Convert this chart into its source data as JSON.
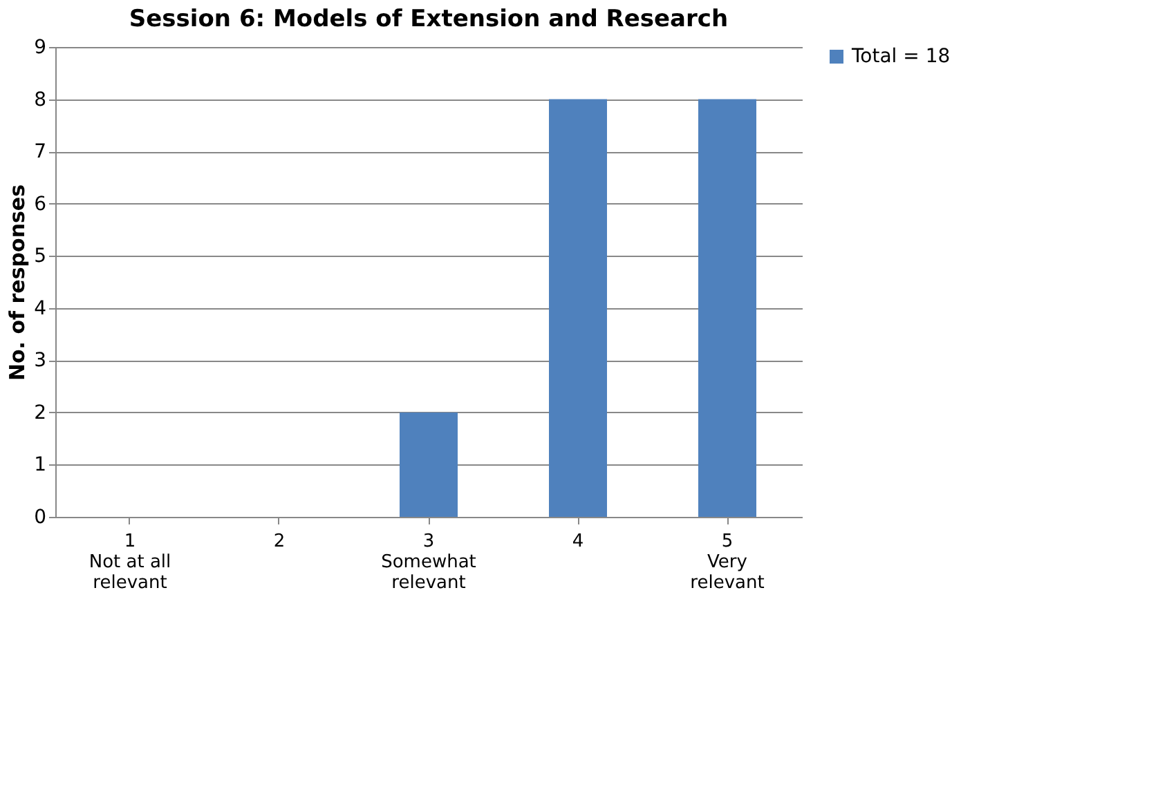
{
  "chart_data": {
    "type": "bar",
    "title": "Session 6: Models of Extension and Research",
    "ylabel": "No. of responses",
    "categories": [
      "1\nNot at all\nrelevant",
      "2",
      "3\nSomewhat\nrelevant",
      "4",
      "5\nVery\nrelevant"
    ],
    "series": [
      {
        "name": "Total = 18",
        "color": "#4f81bd",
        "values": [
          0,
          0,
          2,
          8,
          8
        ]
      }
    ],
    "ylim": [
      0,
      9
    ],
    "yticks": [
      0,
      1,
      2,
      3,
      4,
      5,
      6,
      7,
      8,
      9
    ],
    "grid": "y",
    "legend": "right"
  }
}
